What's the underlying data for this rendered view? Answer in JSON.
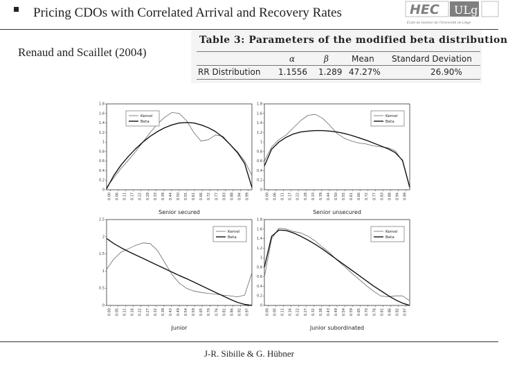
{
  "slide": {
    "title": "Pricing CDOs with Correlated Arrival and Recovery Rates",
    "reference": "Renaud and Scaillet (2004)",
    "footer": "J-R. Sibille & G. Hübner"
  },
  "logo": {
    "text_left": "HEC",
    "text_right": "ULg",
    "tagline": "École de Gestion de l'Université de Liège"
  },
  "table": {
    "caption": "Table 3: Parameters of the modified beta distribution",
    "headers": [
      "",
      "α",
      "β",
      "Mean",
      "Standard Deviation"
    ],
    "row": [
      "RR Distribution",
      "1.1556",
      "1.289",
      "47.27%",
      "26.90%"
    ]
  },
  "colors": {
    "kernel": "#666666",
    "beta": "#111111",
    "frame": "#333333"
  },
  "chart_data": [
    {
      "type": "line",
      "xlabel": "Senior secured",
      "ylim": [
        0,
        1.8
      ],
      "yticks": [
        "0",
        "0.2",
        "0.4",
        "0.6",
        "0.8",
        "1",
        "1.2",
        "1.4",
        "1.6",
        "1.8"
      ],
      "xticks": [
        "0.00",
        "0.06",
        "0.11",
        "0.17",
        "0.22",
        "0.28",
        "0.33",
        "0.39",
        "0.44",
        "0.50",
        "0.55",
        "0.61",
        "0.66",
        "0.72",
        "0.77",
        "0.83",
        "0.88",
        "0.94",
        "0.99"
      ],
      "legend": [
        "Kernel",
        "Beta"
      ],
      "legend_position": "top-left",
      "series": [
        {
          "name": "Kernel",
          "x": [
            0,
            0.05,
            0.1,
            0.15,
            0.2,
            0.25,
            0.3,
            0.35,
            0.4,
            0.45,
            0.5,
            0.55,
            0.6,
            0.65,
            0.7,
            0.75,
            0.8,
            0.85,
            0.9,
            0.95,
            1
          ],
          "y": [
            0.05,
            0.25,
            0.45,
            0.62,
            0.8,
            1.0,
            1.2,
            1.38,
            1.52,
            1.62,
            1.6,
            1.45,
            1.2,
            1.02,
            1.05,
            1.15,
            1.12,
            0.95,
            0.8,
            0.6,
            0.3
          ]
        },
        {
          "name": "Beta",
          "x": [
            0,
            0.05,
            0.1,
            0.15,
            0.2,
            0.25,
            0.3,
            0.35,
            0.4,
            0.45,
            0.5,
            0.55,
            0.6,
            0.65,
            0.7,
            0.75,
            0.8,
            0.85,
            0.9,
            0.95,
            1
          ],
          "y": [
            0.02,
            0.3,
            0.52,
            0.7,
            0.86,
            1.0,
            1.12,
            1.22,
            1.3,
            1.36,
            1.4,
            1.41,
            1.4,
            1.36,
            1.3,
            1.22,
            1.1,
            0.95,
            0.78,
            0.55,
            0.05
          ]
        }
      ]
    },
    {
      "type": "line",
      "xlabel": "Senior unsecured",
      "ylim": [
        0,
        1.8
      ],
      "yticks": [
        "0",
        "0.2",
        "0.4",
        "0.6",
        "0.8",
        "1",
        "1.2",
        "1.4",
        "1.6",
        "1.8"
      ],
      "xticks": [
        "0.00",
        "0.06",
        "0.11",
        "0.17",
        "0.22",
        "0.28",
        "0.33",
        "0.39",
        "0.44",
        "0.50",
        "0.55",
        "0.61",
        "0.66",
        "0.72",
        "0.77",
        "0.83",
        "0.88",
        "0.94",
        "0.99"
      ],
      "legend": [
        "Kernel",
        "Beta"
      ],
      "legend_position": "top-right",
      "series": [
        {
          "name": "Kernel",
          "x": [
            0,
            0.05,
            0.1,
            0.15,
            0.2,
            0.25,
            0.3,
            0.35,
            0.4,
            0.45,
            0.5,
            0.55,
            0.6,
            0.65,
            0.7,
            0.75,
            0.8,
            0.85,
            0.9,
            0.95,
            1
          ],
          "y": [
            0.6,
            0.9,
            1.05,
            1.15,
            1.3,
            1.45,
            1.56,
            1.58,
            1.5,
            1.35,
            1.18,
            1.08,
            1.02,
            0.98,
            0.96,
            0.92,
            0.9,
            0.88,
            0.82,
            0.6,
            0.05
          ]
        },
        {
          "name": "Beta",
          "x": [
            0,
            0.05,
            0.1,
            0.15,
            0.2,
            0.25,
            0.3,
            0.35,
            0.4,
            0.45,
            0.5,
            0.55,
            0.6,
            0.65,
            0.7,
            0.75,
            0.8,
            0.85,
            0.9,
            0.95,
            1
          ],
          "y": [
            0.5,
            0.85,
            1.0,
            1.1,
            1.17,
            1.21,
            1.23,
            1.24,
            1.24,
            1.23,
            1.21,
            1.18,
            1.14,
            1.09,
            1.04,
            0.98,
            0.92,
            0.86,
            0.78,
            0.62,
            0.05
          ]
        }
      ]
    },
    {
      "type": "line",
      "xlabel": "Junior",
      "ylim": [
        0,
        2.5
      ],
      "yticks": [
        "0",
        "0.5",
        "1",
        "1.5",
        "2",
        "2.5"
      ],
      "xticks": [
        "0.00",
        "0.05",
        "0.11",
        "0.16",
        "0.22",
        "0.27",
        "0.32",
        "0.38",
        "0.43",
        "0.49",
        "0.54",
        "0.59",
        "0.65",
        "0.70",
        "0.76",
        "0.81",
        "0.86",
        "0.92",
        "0.97"
      ],
      "legend": [
        "Kernel",
        "Beta"
      ],
      "legend_position": "top-right",
      "series": [
        {
          "name": "Kernel",
          "x": [
            0,
            0.05,
            0.1,
            0.15,
            0.2,
            0.25,
            0.3,
            0.35,
            0.4,
            0.45,
            0.5,
            0.55,
            0.6,
            0.65,
            0.7,
            0.75,
            0.8,
            0.85,
            0.9,
            0.95,
            1
          ],
          "y": [
            1.05,
            1.35,
            1.55,
            1.65,
            1.75,
            1.82,
            1.8,
            1.6,
            1.25,
            0.9,
            0.65,
            0.5,
            0.42,
            0.38,
            0.35,
            0.33,
            0.3,
            0.28,
            0.25,
            0.3,
            0.95
          ]
        },
        {
          "name": "Beta",
          "x": [
            0,
            0.05,
            0.1,
            0.15,
            0.2,
            0.25,
            0.3,
            0.35,
            0.4,
            0.45,
            0.5,
            0.55,
            0.6,
            0.65,
            0.7,
            0.75,
            0.8,
            0.85,
            0.9,
            0.95,
            1
          ],
          "y": [
            1.95,
            1.8,
            1.68,
            1.57,
            1.47,
            1.37,
            1.27,
            1.17,
            1.07,
            0.97,
            0.87,
            0.78,
            0.68,
            0.58,
            0.48,
            0.38,
            0.28,
            0.18,
            0.09,
            0.03,
            0.0
          ]
        }
      ]
    },
    {
      "type": "line",
      "xlabel": "Junior subordinated",
      "ylim": [
        0,
        1.8
      ],
      "yticks": [
        "0",
        "0.2",
        "0.4",
        "0.6",
        "0.8",
        "1",
        "1.2",
        "1.4",
        "1.6",
        "1.8"
      ],
      "xticks": [
        "0.00",
        "0.05",
        "0.11",
        "0.16",
        "0.22",
        "0.27",
        "0.32",
        "0.38",
        "0.43",
        "0.49",
        "0.54",
        "0.59",
        "0.65",
        "0.70",
        "0.76",
        "0.81",
        "0.86",
        "0.92",
        "0.97"
      ],
      "legend": [
        "Kernel",
        "Beta"
      ],
      "legend_position": "top-right",
      "series": [
        {
          "name": "Kernel",
          "x": [
            0,
            0.05,
            0.1,
            0.15,
            0.2,
            0.25,
            0.3,
            0.35,
            0.4,
            0.45,
            0.5,
            0.55,
            0.6,
            0.65,
            0.7,
            0.75,
            0.8,
            0.85,
            0.9,
            0.95,
            1
          ],
          "y": [
            0.6,
            1.4,
            1.62,
            1.6,
            1.55,
            1.52,
            1.45,
            1.35,
            1.22,
            1.1,
            0.95,
            0.82,
            0.68,
            0.55,
            0.42,
            0.3,
            0.2,
            0.18,
            0.2,
            0.2,
            0.1
          ]
        },
        {
          "name": "Beta",
          "x": [
            0,
            0.05,
            0.1,
            0.15,
            0.2,
            0.25,
            0.3,
            0.35,
            0.4,
            0.45,
            0.5,
            0.55,
            0.6,
            0.65,
            0.7,
            0.75,
            0.8,
            0.85,
            0.9,
            0.95,
            1
          ],
          "y": [
            0.8,
            1.45,
            1.58,
            1.57,
            1.52,
            1.45,
            1.37,
            1.28,
            1.18,
            1.07,
            0.96,
            0.85,
            0.74,
            0.63,
            0.52,
            0.41,
            0.31,
            0.21,
            0.12,
            0.05,
            0.0
          ]
        }
      ]
    }
  ]
}
